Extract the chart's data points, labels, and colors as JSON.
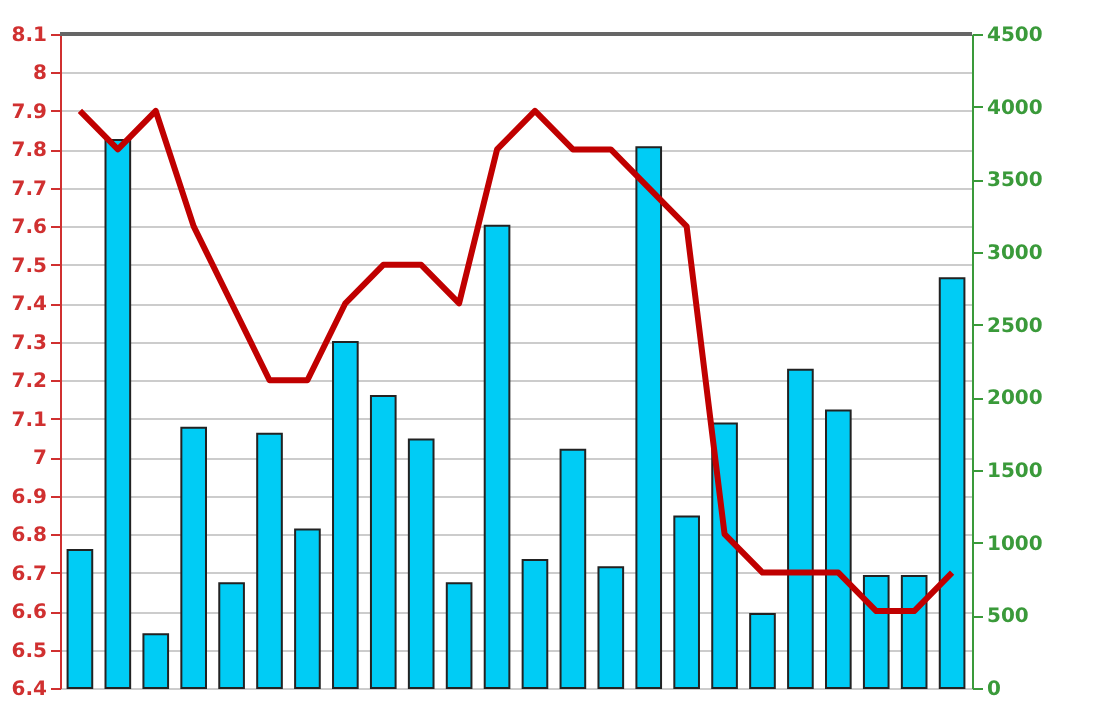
{
  "chart_data": {
    "type": "bar",
    "categories": [
      null,
      null,
      null,
      null,
      null,
      null,
      null,
      null,
      null,
      null,
      null,
      null,
      null,
      null,
      null,
      null,
      null,
      null,
      null,
      null,
      null,
      null,
      null,
      null
    ],
    "series": [
      {
        "axis": "y2",
        "color": "#00ccf5",
        "values": [
          950,
          3770,
          370,
          1790,
          720,
          1750,
          1090,
          2380,
          2010,
          1710,
          720,
          3180,
          880,
          1640,
          830,
          3720,
          1180,
          1820,
          510,
          2190,
          1910,
          770,
          770,
          2820
        ]
      },
      {
        "type": "line",
        "axis": "y",
        "color": "#c00000",
        "values": [
          7.9,
          7.8,
          7.9,
          7.6,
          7.4,
          7.2,
          7.2,
          7.4,
          7.5,
          7.5,
          7.4,
          7.8,
          7.9,
          7.8,
          7.8,
          7.7,
          7.6,
          6.8,
          6.7,
          6.7,
          6.7,
          6.6,
          6.6,
          6.7
        ]
      }
    ],
    "ylim": [
      6.4,
      8.1
    ],
    "yticks": [
      6.4,
      6.5,
      6.6,
      6.7,
      6.8,
      6.9,
      7,
      7.1,
      7.2,
      7.3,
      7.4,
      7.5,
      7.6,
      7.7,
      7.8,
      7.9,
      8,
      8.1
    ],
    "y2lim": [
      0,
      4500
    ],
    "y2ticks": [
      0,
      500,
      1000,
      1500,
      2000,
      2500,
      3000,
      3500,
      4000,
      4500
    ],
    "grid": "y",
    "marker": "none",
    "line_style": "solid"
  }
}
